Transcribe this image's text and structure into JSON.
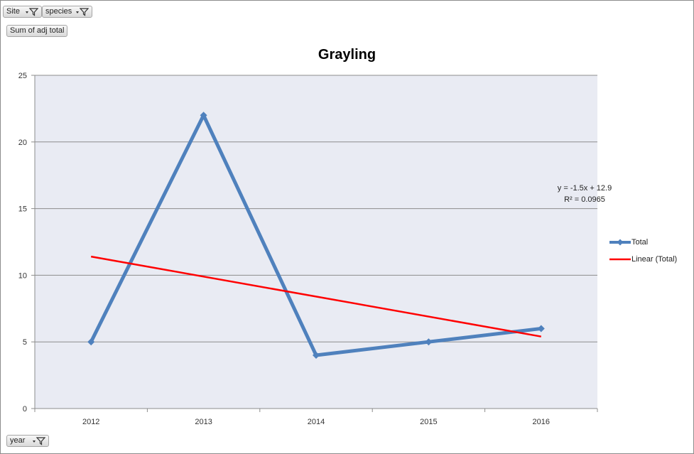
{
  "pivot": {
    "filters": [
      {
        "label": "Site"
      },
      {
        "label": "species"
      }
    ],
    "value_field": "Sum of adj total",
    "axis_field": "year"
  },
  "colors": {
    "series": "#4f81bd",
    "trend": "#ff0000",
    "plot_bg": "#e9ebf3",
    "grid": "#8c8c8c"
  },
  "chart_data": {
    "type": "line",
    "title": "Grayling",
    "categories": [
      "2012",
      "2013",
      "2014",
      "2015",
      "2016"
    ],
    "series": [
      {
        "name": "Total",
        "values": [
          5,
          22,
          4,
          5,
          6
        ],
        "marker": "diamond"
      }
    ],
    "trendline": {
      "name": "Linear (Total)",
      "type": "linear",
      "slope": -1.5,
      "intercept": 12.9,
      "equation": "y = -1.5x + 12.9",
      "r_squared": "R² = 0.0965"
    },
    "ylim": [
      0,
      25
    ],
    "yticks": [
      0,
      5,
      10,
      15,
      20,
      25
    ],
    "grid": true,
    "legend_position": "right"
  }
}
